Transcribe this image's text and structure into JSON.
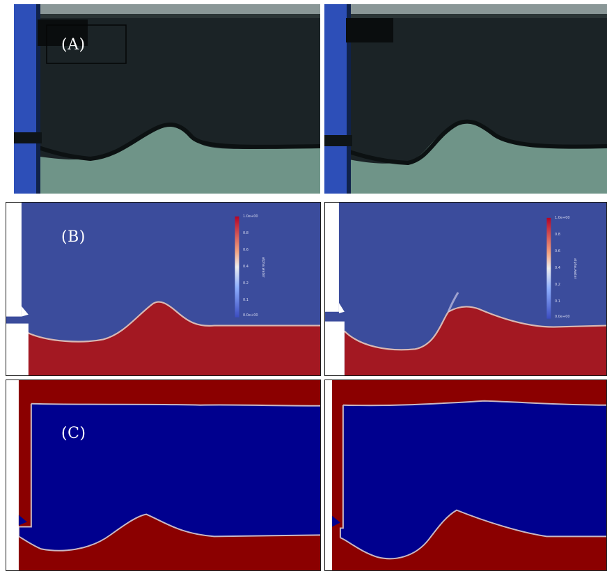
{
  "figure": {
    "rows": [
      {
        "id": "A",
        "label": "(A)",
        "kind": "experimental-photo"
      },
      {
        "id": "B",
        "label": "(B)",
        "kind": "simulation-volume-fraction"
      },
      {
        "id": "C",
        "label": "(C)",
        "kind": "simulation-volume-fraction"
      }
    ],
    "colorbar": {
      "ticks": [
        "1.0e+00",
        "0.8",
        "0.6",
        "0.4",
        "0.2",
        "0.1",
        "0.0e+00"
      ],
      "title": "alpha.water"
    },
    "colors": {
      "photo_water": "#1b2326",
      "photo_sediment": "#6f9488",
      "photo_wall": "#2d4fb8",
      "sim_b_water": "#3b4c9c",
      "sim_b_sediment": "#a31822",
      "sim_c_water": "#00008e",
      "sim_c_sediment": "#8b0000"
    }
  }
}
